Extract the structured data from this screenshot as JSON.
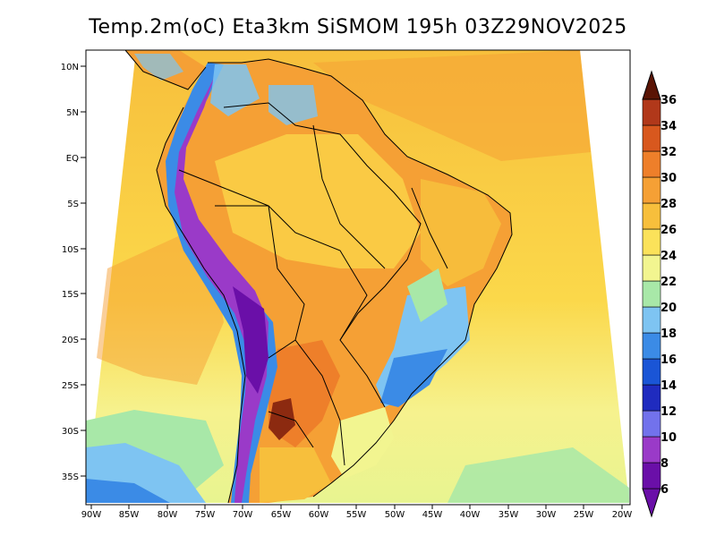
{
  "title": "Temp.2m(oC) Eta3km SiSMOM 195h 03Z29NOV2025",
  "map": {
    "variable": "2m temperature",
    "units": "oC",
    "model": "Eta3km SiSMOM",
    "forecast_hour": "195h",
    "valid_time": "03Z29NOV2025",
    "lat_labels": [
      "10N",
      "5N",
      "EQ",
      "5S",
      "10S",
      "15S",
      "20S",
      "25S",
      "30S",
      "35S"
    ],
    "lon_labels": [
      "90W",
      "85W",
      "80W",
      "75W",
      "70W",
      "65W",
      "60W",
      "55W",
      "50W",
      "45W",
      "40W",
      "35W",
      "30W",
      "25W",
      "20W"
    ]
  },
  "colorbar": {
    "labels": [
      "6",
      "8",
      "10",
      "12",
      "14",
      "16",
      "18",
      "20",
      "22",
      "24",
      "26",
      "28",
      "30",
      "32",
      "34",
      "36"
    ],
    "colors": [
      "#6a0fa8",
      "#9a3ac8",
      "#7272ec",
      "#1f2bbf",
      "#1a55d6",
      "#3b8be6",
      "#7ec4f2",
      "#a8e8a8",
      "#f2f590",
      "#fbe25a",
      "#f7bf3c",
      "#f5a035",
      "#ee7f2a",
      "#d8581e",
      "#b1381a",
      "#8c2a10",
      "#5a1405"
    ]
  }
}
